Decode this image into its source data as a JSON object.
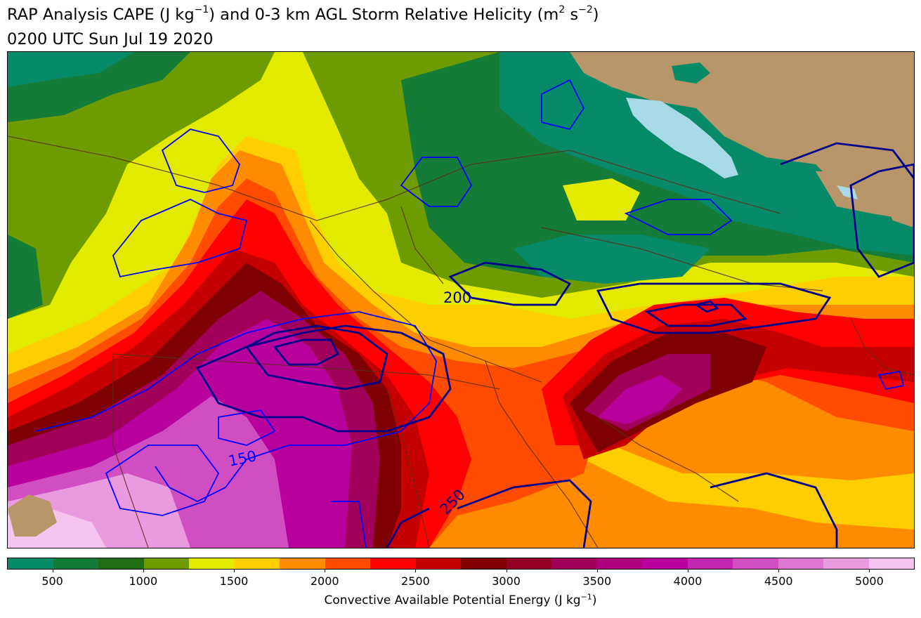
{
  "title": {
    "prefix": "RAP Analysis CAPE (J kg",
    "sup1": "−1",
    "middle": ") and 0-3 km AGL Storm Relative Helicity (m",
    "sup2": "2",
    "s_unit": " s",
    "sup3": "−2",
    "suffix": ")"
  },
  "subtitle": "0200 UTC Sun Jul 19 2020",
  "colorbar": {
    "label_prefix": "Convective Available Potential Energy (J kg",
    "label_sup": "−1",
    "label_suffix": ")",
    "min": 250,
    "max": 5250,
    "colors": [
      "#078a68",
      "#157b39",
      "#206d15",
      "#6e9b00",
      "#e2ea00",
      "#fece00",
      "#ff8c00",
      "#ff4c00",
      "#ff0000",
      "#c40000",
      "#7e0000",
      "#950024",
      "#a1005a",
      "#ae007e",
      "#b8009c",
      "#c326b0",
      "#d14ec2",
      "#df75d2",
      "#ea9be0",
      "#f6c4ef"
    ],
    "ticks": [
      "500",
      "1000",
      "1500",
      "2000",
      "2500",
      "3000",
      "3500",
      "4000",
      "4500",
      "5000"
    ]
  },
  "contour_labels": [
    {
      "text": "200",
      "color": "#00008b"
    },
    {
      "text": "150",
      "color": "#0000ff"
    },
    {
      "text": "250",
      "color": "#00008b"
    }
  ],
  "map_colors": {
    "land": "#b8966a",
    "lake": "#a8dae5",
    "border": "#5a2e1a",
    "srh_light": "#0000ff",
    "srh_dark": "#00008b"
  }
}
